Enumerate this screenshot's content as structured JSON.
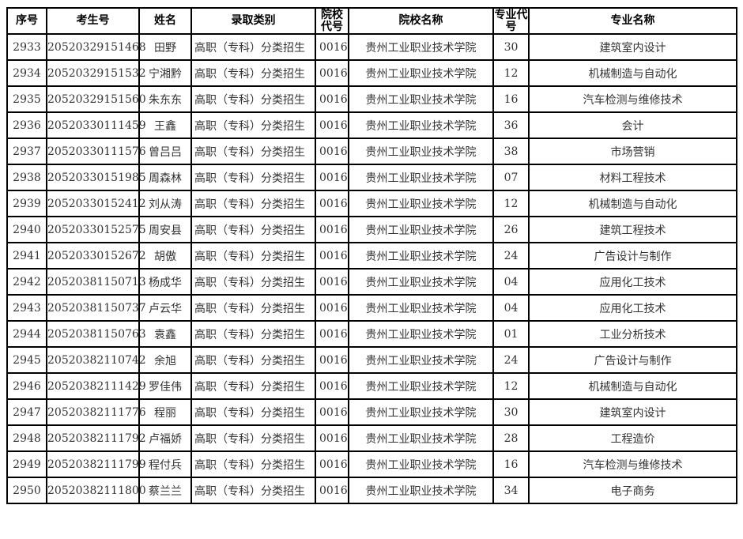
{
  "headers": [
    "序号",
    "考生号",
    "姓名",
    "录取类别",
    "院校代号",
    "院校名称",
    "专业代号",
    "专业名称"
  ],
  "rows": [
    [
      "2933",
      "20520329151468",
      "田野",
      "高职（专科）分类招生",
      "0016",
      "贵州工业职业技术学院",
      "30",
      "建筑室内设计"
    ],
    [
      "2934",
      "20520329151532",
      "宁湘黔",
      "高职（专科）分类招生",
      "0016",
      "贵州工业职业技术学院",
      "12",
      "机械制造与自动化"
    ],
    [
      "2935",
      "20520329151560",
      "朱东东",
      "高职（专科）分类招生",
      "0016",
      "贵州工业职业技术学院",
      "16",
      "汽车检测与维修技术"
    ],
    [
      "2936",
      "20520330111459",
      "王鑫",
      "高职（专科）分类招生",
      "0016",
      "贵州工业职业技术学院",
      "36",
      "会计"
    ],
    [
      "2937",
      "20520330111576",
      "曾吕吕",
      "高职（专科）分类招生",
      "0016",
      "贵州工业职业技术学院",
      "38",
      "市场营销"
    ],
    [
      "2938",
      "20520330151985",
      "周森林",
      "高职（专科）分类招生",
      "0016",
      "贵州工业职业技术学院",
      "07",
      "材料工程技术"
    ],
    [
      "2939",
      "20520330152412",
      "刘从涛",
      "高职（专科）分类招生",
      "0016",
      "贵州工业职业技术学院",
      "12",
      "机械制造与自动化"
    ],
    [
      "2940",
      "20520330152575",
      "周安县",
      "高职（专科）分类招生",
      "0016",
      "贵州工业职业技术学院",
      "26",
      "建筑工程技术"
    ],
    [
      "2941",
      "20520330152672",
      "胡傲",
      "高职（专科）分类招生",
      "0016",
      "贵州工业职业技术学院",
      "24",
      "广告设计与制作"
    ],
    [
      "2942",
      "20520381150713",
      "杨成华",
      "高职（专科）分类招生",
      "0016",
      "贵州工业职业技术学院",
      "04",
      "应用化工技术"
    ],
    [
      "2943",
      "20520381150737",
      "卢云华",
      "高职（专科）分类招生",
      "0016",
      "贵州工业职业技术学院",
      "04",
      "应用化工技术"
    ],
    [
      "2944",
      "20520381150763",
      "袁鑫",
      "高职（专科）分类招生",
      "0016",
      "贵州工业职业技术学院",
      "01",
      "工业分析技术"
    ],
    [
      "2945",
      "20520382110742",
      "余旭",
      "高职（专科）分类招生",
      "0016",
      "贵州工业职业技术学院",
      "24",
      "广告设计与制作"
    ],
    [
      "2946",
      "20520382111429",
      "罗佳伟",
      "高职（专科）分类招生",
      "0016",
      "贵州工业职业技术学院",
      "12",
      "机械制造与自动化"
    ],
    [
      "2947",
      "20520382111776",
      "程丽",
      "高职（专科）分类招生",
      "0016",
      "贵州工业职业技术学院",
      "30",
      "建筑室内设计"
    ],
    [
      "2948",
      "20520382111792",
      "卢福娇",
      "高职（专科）分类招生",
      "0016",
      "贵州工业职业技术学院",
      "28",
      "工程造价"
    ],
    [
      "2949",
      "20520382111799",
      "程付兵",
      "高职（专科）分类招生",
      "0016",
      "贵州工业职业技术学院",
      "16",
      "汽车检测与维修技术"
    ],
    [
      "2950",
      "20520382111800",
      "蔡兰兰",
      "高职（专科）分类招生",
      "0016",
      "贵州工业职业技术学院",
      "34",
      "电子商务"
    ]
  ]
}
